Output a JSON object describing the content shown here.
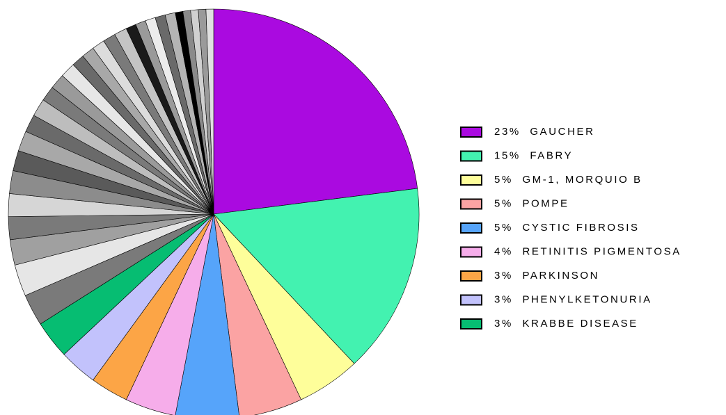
{
  "chart_data": {
    "type": "pie",
    "categories": [
      "GAUCHER",
      "FABRY",
      "GM-1, MORQUIO B",
      "POMPE",
      "CYSTIC FIBROSIS",
      "RETINITIS PIGMENTOSA",
      "PARKINSON",
      "PHENYLKETONURIA",
      "KRABBE DISEASE",
      null,
      null,
      null,
      null,
      null,
      null,
      null,
      null,
      null,
      null,
      null,
      null,
      null,
      null,
      null,
      null,
      null,
      null,
      null,
      null,
      null,
      null,
      null,
      null,
      null,
      null,
      null,
      null
    ],
    "values": [
      23,
      15,
      5,
      5,
      5,
      4,
      3,
      3,
      3,
      2.5,
      2.5,
      2,
      1.8,
      1.8,
      1.8,
      1.6,
      1.6,
      1.4,
      1.4,
      1.2,
      1.2,
      1.2,
      1,
      1,
      1,
      1,
      1,
      0.8,
      0.8,
      0.8,
      0.8,
      0.8,
      0.6,
      0.6,
      0.6,
      0.6,
      0.6
    ],
    "value_labels": [
      "23%",
      "15%",
      "5%",
      "5%",
      "5%",
      "4%",
      "3%",
      "3%",
      "3%",
      null,
      null,
      null,
      null,
      null,
      null,
      null,
      null,
      null,
      null,
      null,
      null,
      null,
      null,
      null,
      null,
      null,
      null,
      null,
      null,
      null,
      null,
      null,
      null,
      null,
      null,
      null,
      null
    ],
    "colors": [
      "#aa0ae0",
      "#43f2b0",
      "#fefe9a",
      "#fba3a3",
      "#56a4fa",
      "#f6adea",
      "#fca546",
      "#c2c2fc",
      "#06bd72",
      "#7a7a7a",
      "#e6e6e6",
      "#a0a0a0",
      "#7a7a7a",
      "#d6d6d6",
      "#8c8c8c",
      "#5a5a5a",
      "#a8a8a8",
      "#6a6a6a",
      "#bdbdbd",
      "#7a7a7a",
      "#9a9a9a",
      "#e6e6e6",
      "#6a6a6a",
      "#a8a8a8",
      "#dcdcdc",
      "#7a7a7a",
      "#c4c4c4",
      "#1a1a1a",
      "#9a9a9a",
      "#ececec",
      "#6a6a6a",
      "#b4b4b4",
      "#000000",
      "#8a8a8a",
      "#d0d0d0",
      "#9a9a9a",
      "#e0e0e0"
    ]
  }
}
